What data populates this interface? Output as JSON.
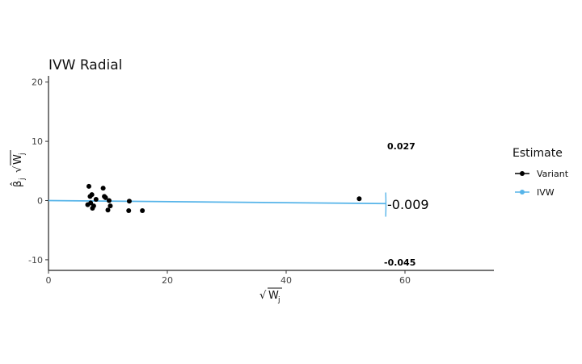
{
  "chart_data": {
    "type": "scatter",
    "title": "IVW Radial",
    "xlabel": "√W_j",
    "ylabel": "β̂_j √W_j",
    "xlim": [
      0,
      75
    ],
    "ylim": [
      -11.5,
      20.5
    ],
    "xticks": [
      0,
      20,
      40,
      60
    ],
    "yticks": [
      -10,
      0,
      10,
      20
    ],
    "grid": false,
    "series": [
      {
        "name": "Variant",
        "color": "#000000",
        "points": [
          [
            6.6,
            -0.7
          ],
          [
            6.8,
            2.4
          ],
          [
            7.0,
            0.7
          ],
          [
            7.1,
            -0.4
          ],
          [
            7.3,
            1.0
          ],
          [
            7.4,
            -1.3
          ],
          [
            7.6,
            -0.9
          ],
          [
            8.0,
            0.2
          ],
          [
            9.2,
            2.1
          ],
          [
            9.4,
            0.7
          ],
          [
            9.6,
            0.5
          ],
          [
            10.0,
            -1.6
          ],
          [
            10.4,
            -0.9
          ],
          [
            10.2,
            0.0
          ],
          [
            13.5,
            -1.7
          ],
          [
            13.6,
            -0.1
          ],
          [
            15.8,
            -1.7
          ],
          [
            52.3,
            0.3
          ]
        ]
      },
      {
        "name": "IVW",
        "color": "#56B4E9",
        "slope": -0.009,
        "x_range": [
          0,
          56.8
        ]
      }
    ],
    "annotations": {
      "upper": "0.027",
      "estimate": "-0.009",
      "lower": "-0.045",
      "arc_radius": 56.8
    },
    "legend": {
      "title": "Estimate",
      "placement": "right",
      "items": [
        "Variant",
        "IVW"
      ]
    }
  }
}
